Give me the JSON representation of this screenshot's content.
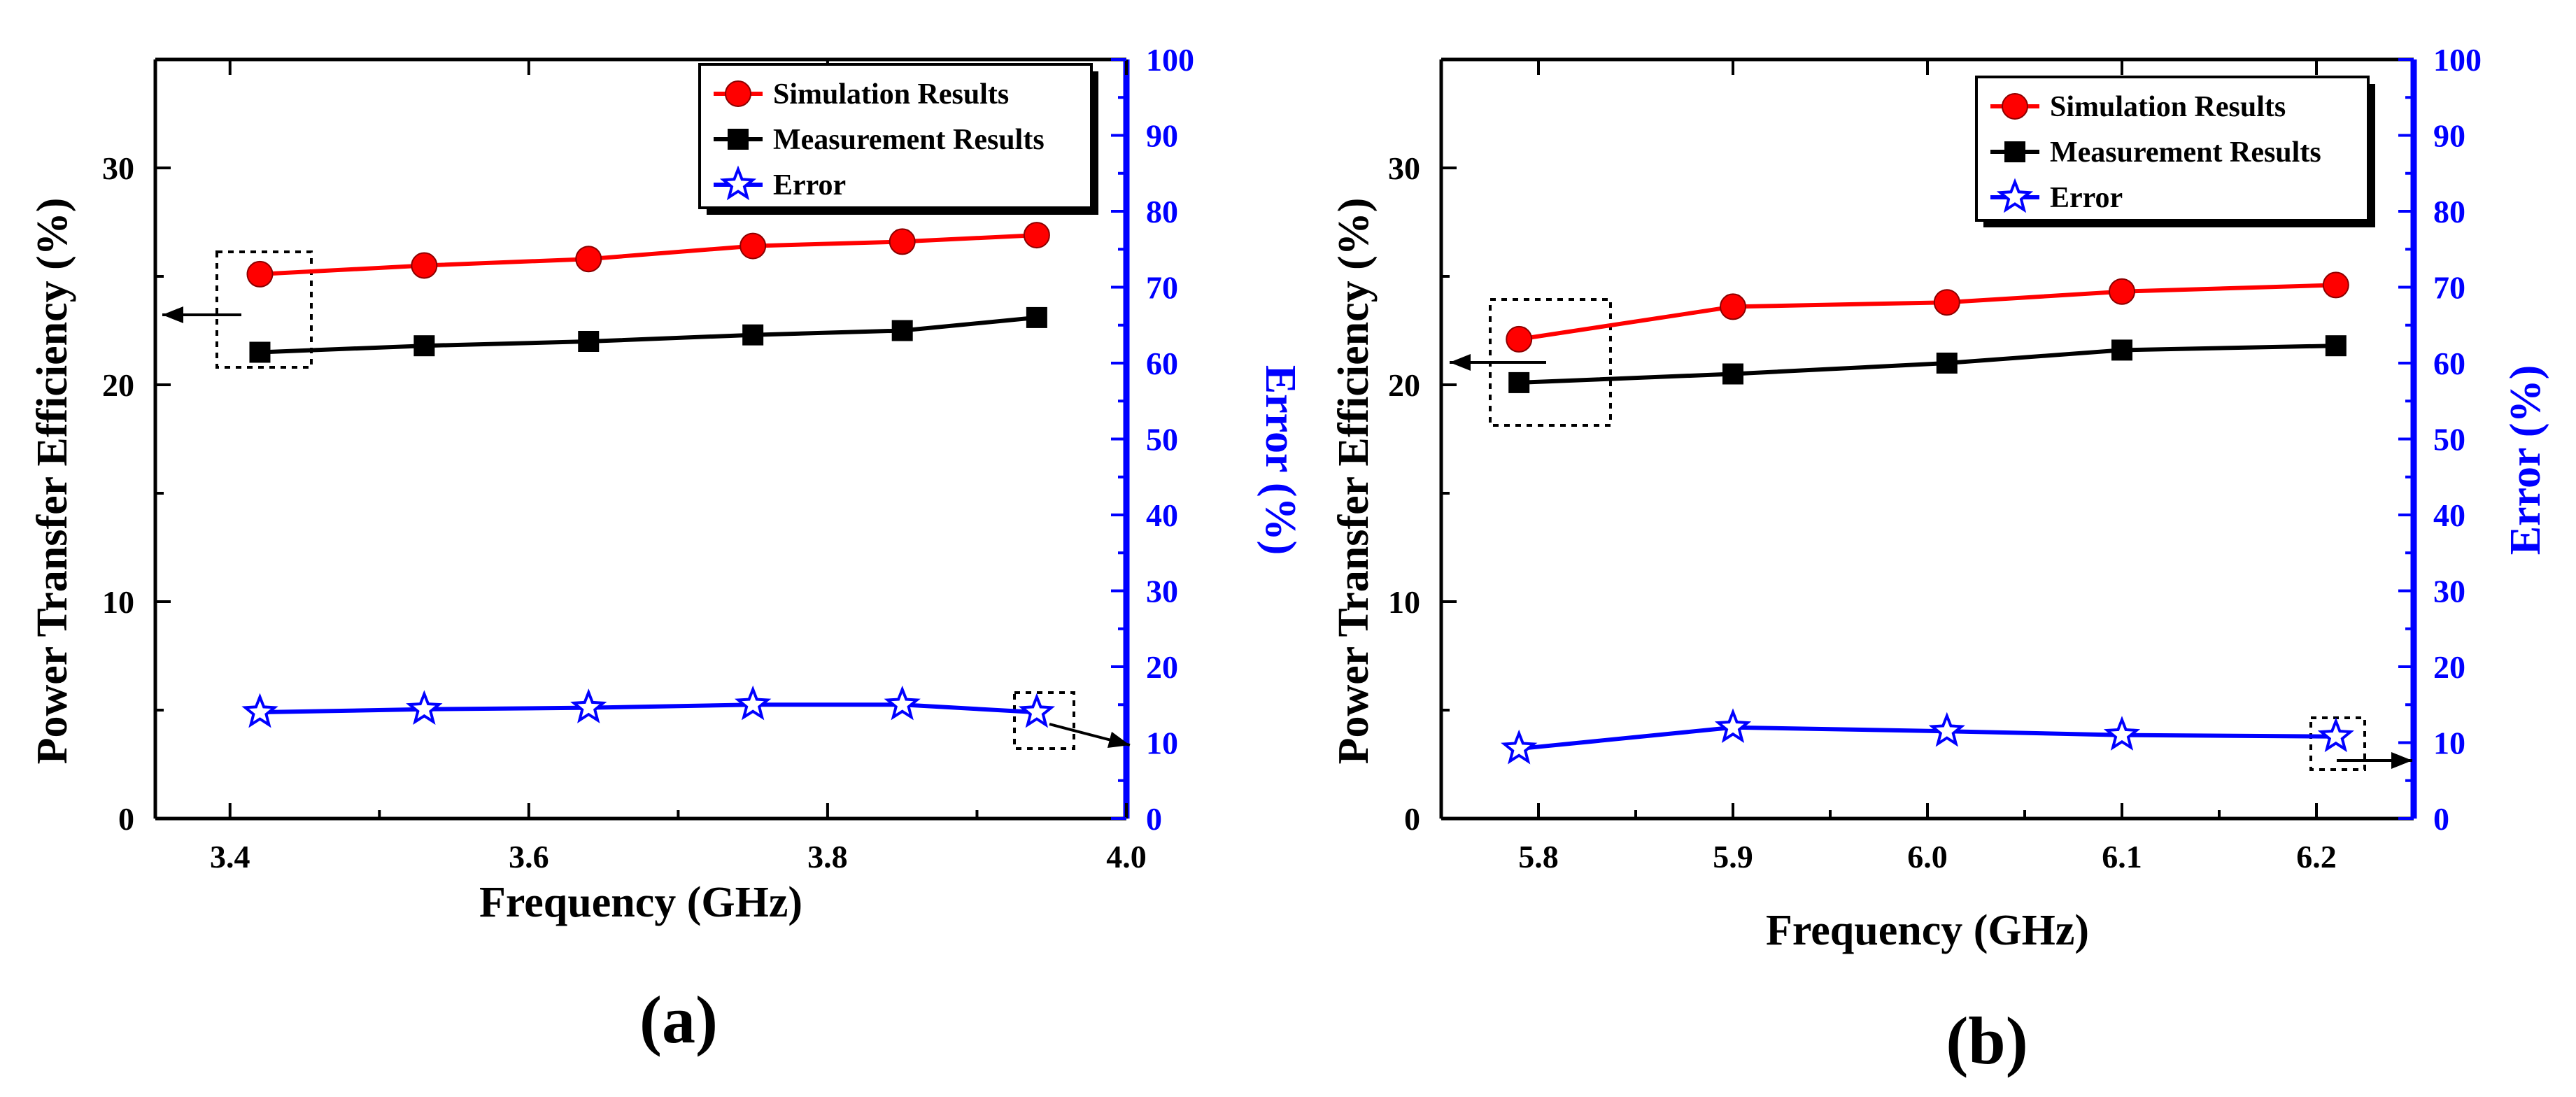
{
  "chart_data": [
    {
      "panel_label": "(a)",
      "type": "line",
      "xlabel": "Frequency (GHz)",
      "ylabel": "Power Transfer Efficiency (%)",
      "y2label": "Error (%)",
      "xlim": [
        3.35,
        4.0
      ],
      "ylim": [
        0,
        35
      ],
      "y2lim": [
        0,
        100
      ],
      "xticks": [
        "3.4",
        "3.6",
        "3.8",
        "4.0"
      ],
      "yticks": [
        "0",
        "10",
        "20",
        "30"
      ],
      "y2ticks": [
        "0",
        "10",
        "20",
        "30",
        "40",
        "50",
        "60",
        "70",
        "80",
        "90",
        "100"
      ],
      "legend_position": "top-right",
      "series": [
        {
          "name": "Simulation Results",
          "axis": "left",
          "color": "#ff0000",
          "marker": "circle",
          "x": [
            3.42,
            3.53,
            3.64,
            3.75,
            3.85,
            3.94
          ],
          "values": [
            25.1,
            25.5,
            25.8,
            26.4,
            26.6,
            26.9
          ]
        },
        {
          "name": "Measurement Results",
          "axis": "left",
          "color": "#000000",
          "marker": "square",
          "x": [
            3.42,
            3.53,
            3.64,
            3.75,
            3.85,
            3.94
          ],
          "values": [
            21.5,
            21.8,
            22.0,
            22.3,
            22.5,
            23.1
          ]
        },
        {
          "name": "Error",
          "axis": "right",
          "color": "#0000ff",
          "marker": "star",
          "x": [
            3.42,
            3.53,
            3.64,
            3.75,
            3.85,
            3.94
          ],
          "values": [
            14.0,
            14.4,
            14.6,
            15.0,
            15.0,
            14.0
          ]
        }
      ],
      "annotations": [
        {
          "box_around": "first points",
          "arrow_toward": "left axis"
        },
        {
          "box_around": "last error point",
          "arrow_toward": "right axis"
        }
      ]
    },
    {
      "panel_label": "(b)",
      "type": "line",
      "xlabel": "Frequency (GHz)",
      "ylabel": "Power Transfer Efficiency (%)",
      "y2label": "Error (%)",
      "xlim": [
        5.75,
        6.25
      ],
      "ylim": [
        0,
        35
      ],
      "y2lim": [
        0,
        100
      ],
      "xticks": [
        "5.8",
        "5.9",
        "6.0",
        "6.1",
        "6.2"
      ],
      "yticks": [
        "0",
        "10",
        "20",
        "30"
      ],
      "y2ticks": [
        "0",
        "10",
        "20",
        "30",
        "40",
        "50",
        "60",
        "70",
        "80",
        "90",
        "100"
      ],
      "legend_position": "top-right",
      "series": [
        {
          "name": "Simulation Results",
          "axis": "left",
          "color": "#ff0000",
          "marker": "circle",
          "x": [
            5.79,
            5.9,
            6.01,
            6.1,
            6.21
          ],
          "values": [
            22.1,
            23.6,
            23.8,
            24.3,
            24.6
          ]
        },
        {
          "name": "Measurement Results",
          "axis": "left",
          "color": "#000000",
          "marker": "square",
          "x": [
            5.79,
            5.9,
            6.01,
            6.1,
            6.21
          ],
          "values": [
            20.1,
            20.5,
            21.0,
            21.6,
            21.8
          ]
        },
        {
          "name": "Error",
          "axis": "right",
          "color": "#0000ff",
          "marker": "star",
          "x": [
            5.79,
            5.9,
            6.01,
            6.1,
            6.21
          ],
          "values": [
            9.2,
            12.0,
            11.5,
            11.0,
            10.8
          ]
        }
      ],
      "annotations": [
        {
          "box_around": "first points",
          "arrow_toward": "left axis"
        },
        {
          "box_around": "last error point",
          "arrow_toward": "right axis"
        }
      ]
    }
  ]
}
